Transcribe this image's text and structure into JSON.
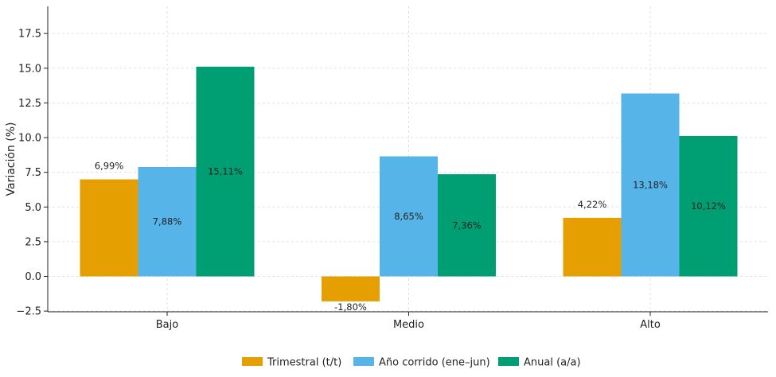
{
  "chart_data": {
    "type": "bar",
    "title": "",
    "xlabel": "",
    "ylabel": "Variación (%)",
    "categories": [
      "Bajo",
      "Medio",
      "Alto"
    ],
    "ylim": [
      -2.5,
      19.5
    ],
    "yticks": [
      "−2.5",
      "0.0",
      "2.5",
      "5.0",
      "7.5",
      "10.0",
      "12.5",
      "15.0",
      "17.5"
    ],
    "ytick_values": [
      -2.5,
      0,
      2.5,
      5,
      7.5,
      10,
      12.5,
      15,
      17.5
    ],
    "grid": true,
    "legend_position": "bottom-center",
    "series": [
      {
        "name": "Trimestral (t/t)",
        "color": "#E69F00",
        "values": [
          6.99,
          -1.8,
          4.22
        ],
        "labels": [
          "6,99%",
          "-1,80%",
          "4,22%"
        ]
      },
      {
        "name": "Año corrido (ene–jun)",
        "color": "#56B4E9",
        "values": [
          7.88,
          8.65,
          13.18
        ],
        "labels": [
          "7,88%",
          "8,65%",
          "13,18%"
        ]
      },
      {
        "name": "Anual (a/a)",
        "color": "#009E73",
        "values": [
          15.11,
          7.36,
          10.12
        ],
        "labels": [
          "15,11%",
          "7,36%",
          "10,12%"
        ]
      }
    ]
  }
}
